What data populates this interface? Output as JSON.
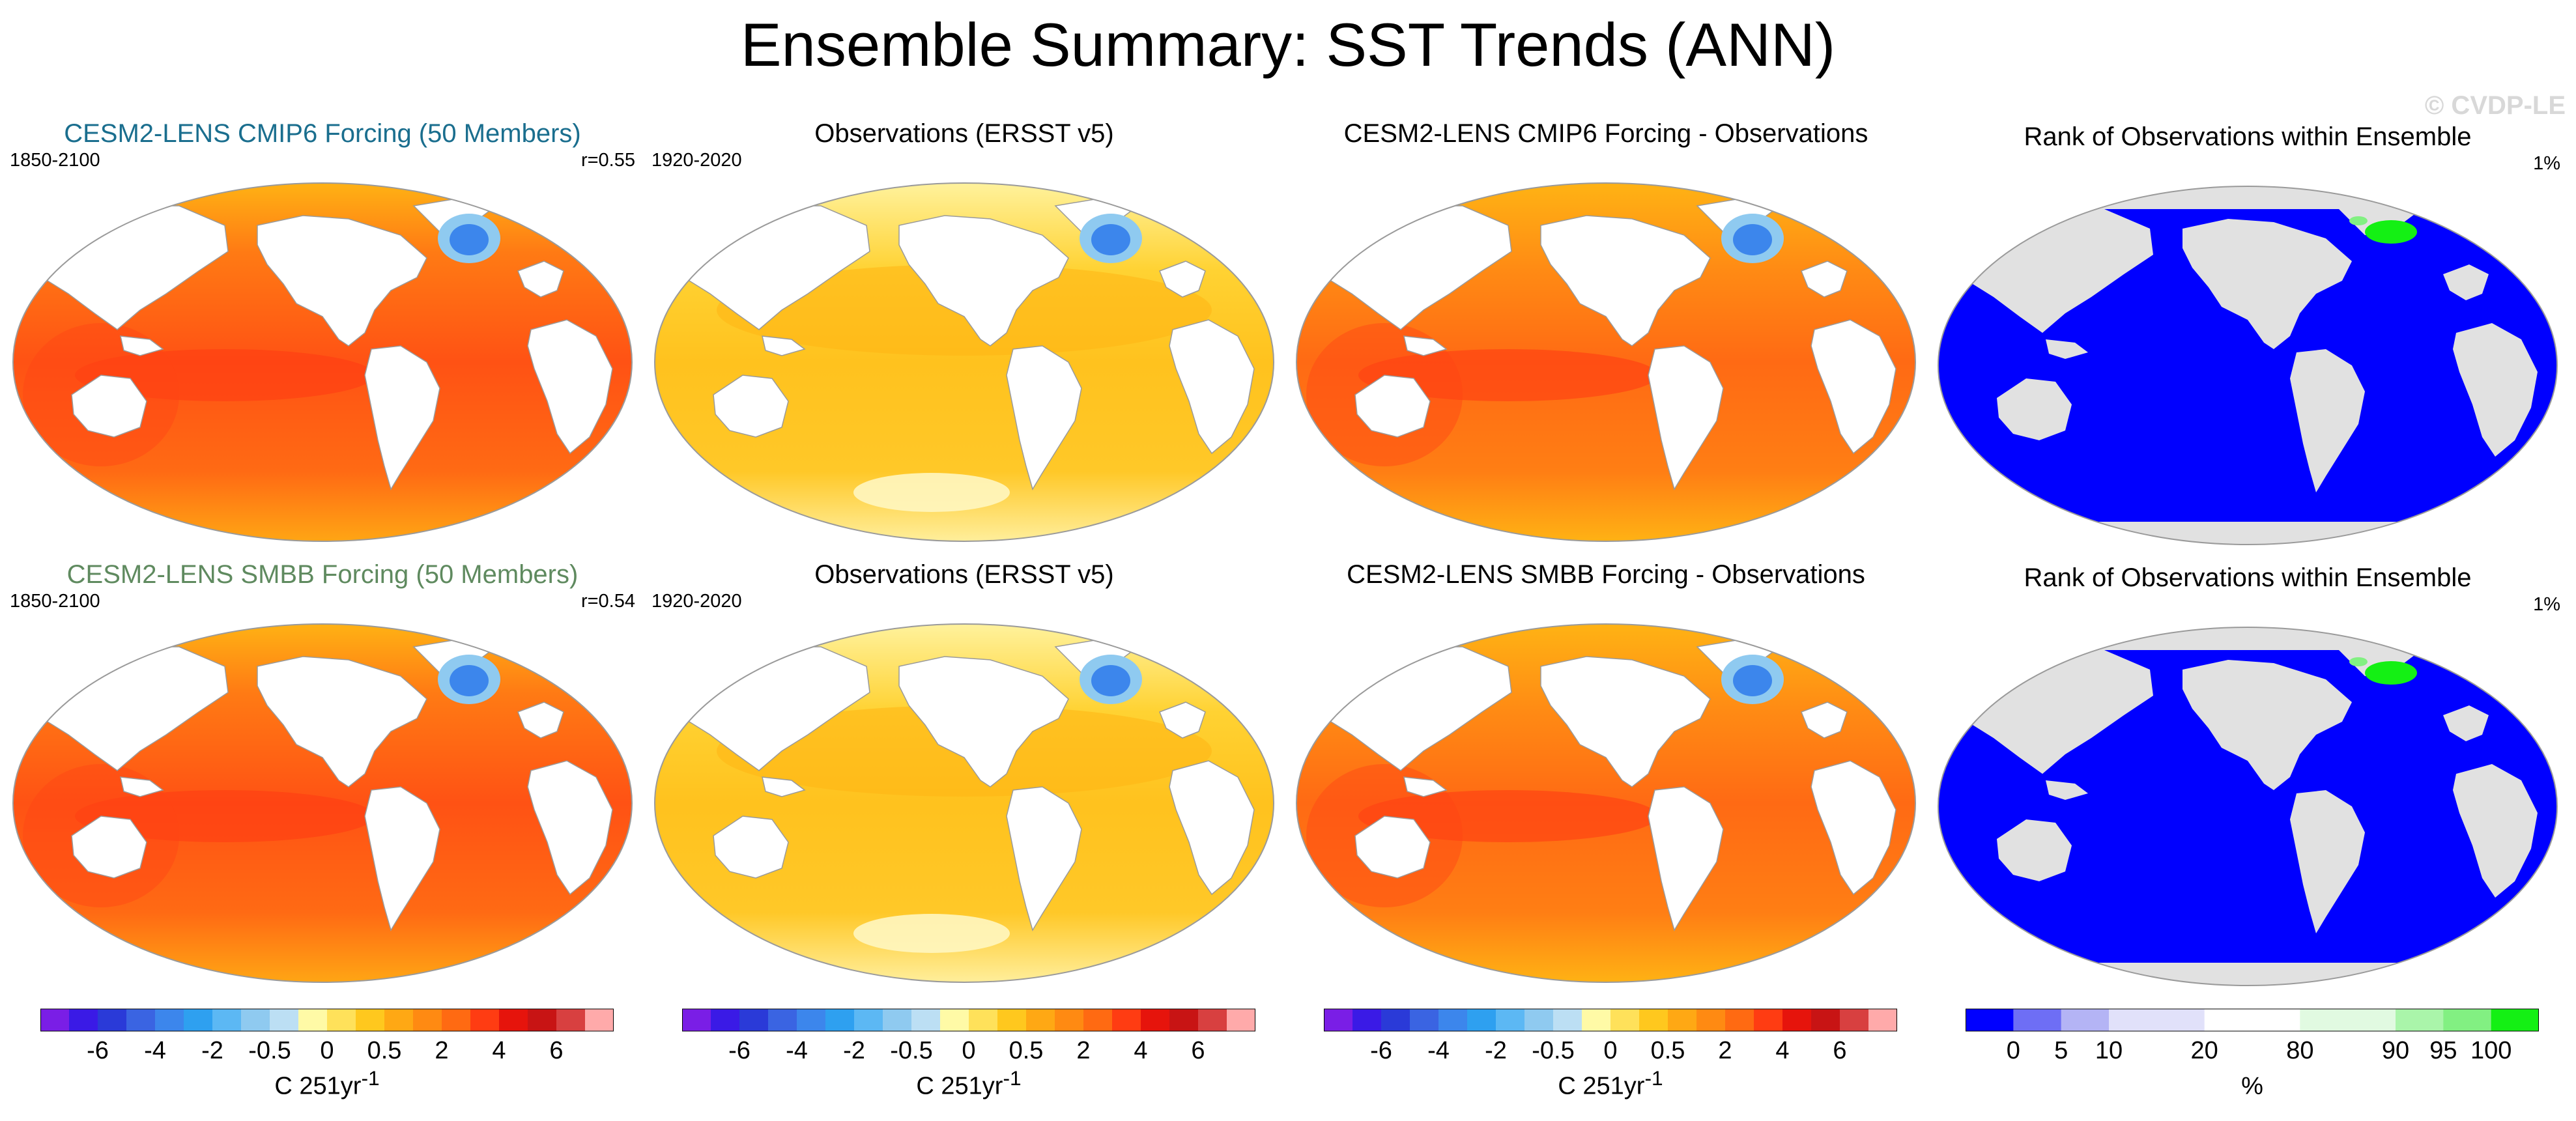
{
  "title": "Ensemble Summary: SST Trends (ANN)",
  "watermark": "© CVDP-LE",
  "panels": [
    {
      "title": "CESM2-LENS CMIP6 Forcing (50 Members)",
      "title_color": "#1a6e8e",
      "left": "1850-2100",
      "right": "r=0.55",
      "kind": "model"
    },
    {
      "title": "Observations (ERSST v5)",
      "title_color": "#000000",
      "left": "1920-2020",
      "right": "",
      "kind": "obs"
    },
    {
      "title": "CESM2-LENS CMIP6 Forcing - Observations",
      "title_color": "#000000",
      "left": "",
      "right": "",
      "kind": "diff"
    },
    {
      "title": "Rank of Observations within Ensemble",
      "title_color": "#000000",
      "left": "",
      "right": "1%",
      "kind": "rank"
    },
    {
      "title": "CESM2-LENS SMBB Forcing (50 Members)",
      "title_color": "#5f8a5f",
      "left": "1850-2100",
      "right": "r=0.54",
      "kind": "model"
    },
    {
      "title": "Observations (ERSST v5)",
      "title_color": "#000000",
      "left": "1920-2020",
      "right": "",
      "kind": "obs"
    },
    {
      "title": "CESM2-LENS SMBB Forcing - Observations",
      "title_color": "#000000",
      "left": "",
      "right": "",
      "kind": "diff"
    },
    {
      "title": "Rank of Observations within Ensemble",
      "title_color": "#000000",
      "left": "",
      "right": "1%",
      "kind": "rank"
    }
  ],
  "colorbars": [
    {
      "colors": [
        "#7a1ee6",
        "#3a1ae6",
        "#2a3ad8",
        "#3a64e2",
        "#3c86ec",
        "#2ea0f0",
        "#5cb8f4",
        "#8fcaf0",
        "#bcdff4",
        "#fffaa6",
        "#ffe15a",
        "#ffc81e",
        "#ffa814",
        "#ff8a12",
        "#ff6a12",
        "#ff3c12",
        "#e6140c",
        "#c81414",
        "#d84040",
        "#ffaaaa"
      ],
      "tick_labels": [
        "-6",
        "-4",
        "-2",
        "-0.5",
        "0",
        "0.5",
        "2",
        "4",
        "6"
      ],
      "tick_slots": [
        2,
        4,
        6,
        8,
        10,
        12,
        14,
        16,
        18
      ],
      "units": "C 251yr",
      "units_sup": "-1"
    },
    {
      "colors": [
        "#7a1ee6",
        "#3a1ae6",
        "#2a3ad8",
        "#3a64e2",
        "#3c86ec",
        "#2ea0f0",
        "#5cb8f4",
        "#8fcaf0",
        "#bcdff4",
        "#fffaa6",
        "#ffe15a",
        "#ffc81e",
        "#ffa814",
        "#ff8a12",
        "#ff6a12",
        "#ff3c12",
        "#e6140c",
        "#c81414",
        "#d84040",
        "#ffaaaa"
      ],
      "tick_labels": [
        "-6",
        "-4",
        "-2",
        "-0.5",
        "0",
        "0.5",
        "2",
        "4",
        "6"
      ],
      "tick_slots": [
        2,
        4,
        6,
        8,
        10,
        12,
        14,
        16,
        18
      ],
      "units": "C 251yr",
      "units_sup": "-1"
    },
    {
      "colors": [
        "#7a1ee6",
        "#3a1ae6",
        "#2a3ad8",
        "#3a64e2",
        "#3c86ec",
        "#2ea0f0",
        "#5cb8f4",
        "#8fcaf0",
        "#bcdff4",
        "#fffaa6",
        "#ffe15a",
        "#ffc81e",
        "#ffa814",
        "#ff8a12",
        "#ff6a12",
        "#ff3c12",
        "#e6140c",
        "#c81414",
        "#d84040",
        "#ffaaaa"
      ],
      "tick_labels": [
        "-6",
        "-4",
        "-2",
        "-0.5",
        "0",
        "0.5",
        "2",
        "4",
        "6"
      ],
      "tick_slots": [
        2,
        4,
        6,
        8,
        10,
        12,
        14,
        16,
        18
      ],
      "units": "C 251yr",
      "units_sup": "-1"
    },
    {
      "colors": [
        "#0000ff",
        "#6e6ef5",
        "#b4b4f5",
        "#e1e1fa",
        "#ffffff",
        "#e1fae1",
        "#aaf5aa",
        "#82f082",
        "#14f014"
      ],
      "bin_widths": [
        1,
        1,
        1,
        2,
        2,
        2,
        1,
        1,
        1
      ],
      "tick_labels": [
        "0",
        "5",
        "10",
        "20",
        "80",
        "90",
        "95",
        "100"
      ],
      "tick_slots": [
        1,
        2,
        3,
        5,
        7,
        9,
        10,
        11
      ],
      "units": "%",
      "units_sup": ""
    }
  ],
  "chart_data": {
    "type": "heatmap",
    "title": "Ensemble Summary: SST Trends (ANN)",
    "variable": "SST trend",
    "units": "C 251yr^-1",
    "trend_color_levels": [
      "-6",
      "-4",
      "-2",
      "-0.5",
      "0",
      "0.5",
      "2",
      "4",
      "6"
    ],
    "rank_color_levels": [
      "0",
      "5",
      "10",
      "20",
      "80",
      "90",
      "95",
      "100"
    ],
    "rank_units": "%",
    "panels": [
      {
        "name": "CESM2-LENS CMIP6 Forcing (50 Members)",
        "period": "1850-2100",
        "pattern_correlation": "r=0.55"
      },
      {
        "name": "Observations (ERSST v5)",
        "period": "1920-2020"
      },
      {
        "name": "CESM2-LENS CMIP6 Forcing - Observations"
      },
      {
        "name": "Rank of Observations within Ensemble",
        "percent_area": "1%"
      },
      {
        "name": "CESM2-LENS SMBB Forcing (50 Members)",
        "period": "1850-2100",
        "pattern_correlation": "r=0.54"
      },
      {
        "name": "Observations (ERSST v5)",
        "period": "1920-2020"
      },
      {
        "name": "CESM2-LENS SMBB Forcing - Observations"
      },
      {
        "name": "Rank of Observations within Ensemble",
        "percent_area": "1%"
      }
    ]
  }
}
